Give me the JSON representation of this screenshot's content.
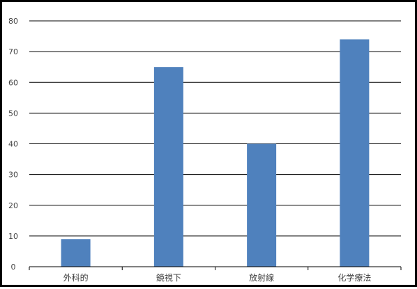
{
  "chart_data": {
    "type": "bar",
    "title": "",
    "xlabel": "",
    "ylabel": "",
    "categories": [
      "外科的",
      "鏡視下",
      "放射線",
      "化学療法"
    ],
    "values": [
      9,
      65,
      40,
      74
    ],
    "ylim": [
      0,
      80
    ],
    "yticks": [
      0,
      10,
      20,
      30,
      40,
      50,
      60,
      70,
      80
    ],
    "grid": true,
    "legend": "none",
    "bar_color": "#4f81bd",
    "grid_color": "#000000"
  }
}
